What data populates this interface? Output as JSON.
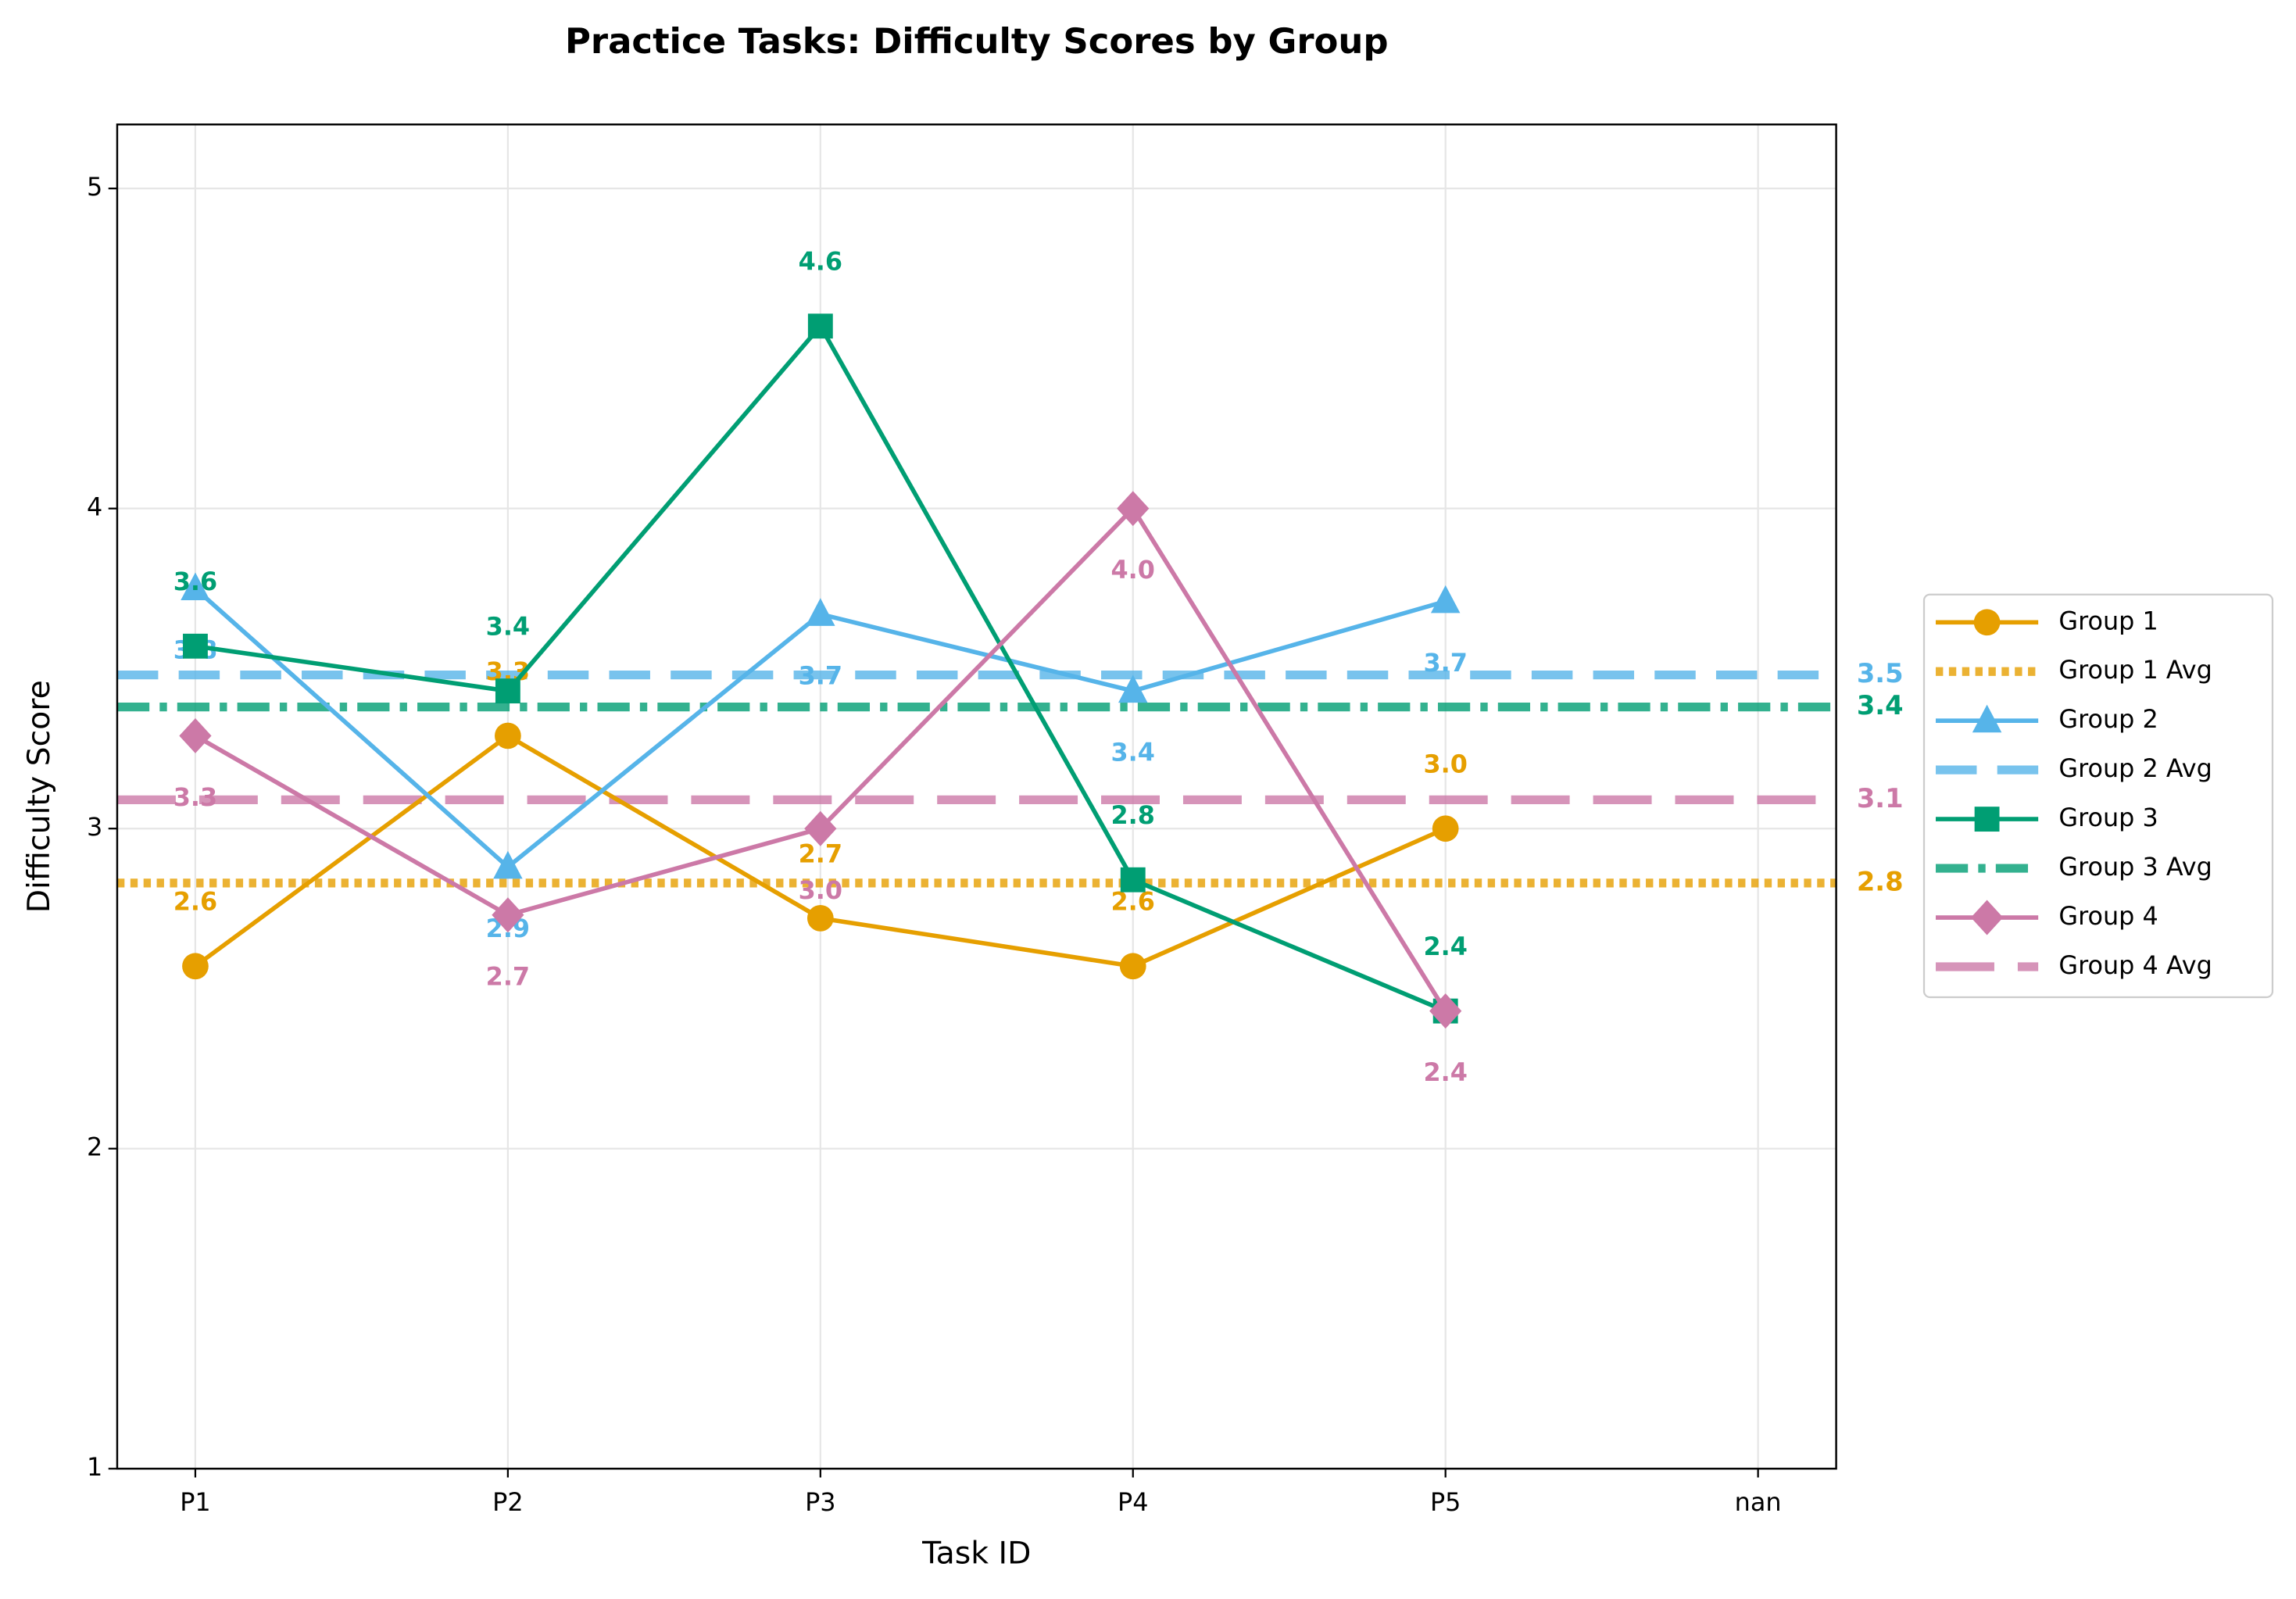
{
  "chart_data": {
    "type": "line",
    "title": "Practice Tasks: Difficulty Scores by Group",
    "x_label": "Task ID",
    "y_label": "Difficulty Score",
    "categories": [
      "P1",
      "P2",
      "P3",
      "P4",
      "P5",
      "nan"
    ],
    "ylim": [
      1,
      5.2
    ],
    "yticks": [
      1,
      2,
      3,
      4,
      5
    ],
    "grid": true,
    "legend": "right",
    "series": [
      {
        "name": "Group 1",
        "color": "#E69F00",
        "marker": "circle",
        "values": [
          2.57,
          3.29,
          2.72,
          2.57,
          3.0,
          null
        ],
        "value_labels": [
          "2.6",
          "3.3",
          "2.7",
          "2.6",
          "3.0",
          null
        ]
      },
      {
        "name": "Group 2",
        "color": "#56B4E9",
        "marker": "triangle",
        "values": [
          3.75,
          2.88,
          3.67,
          3.43,
          3.71,
          null
        ],
        "value_labels": [
          "3.8",
          "2.9",
          "3.7",
          "3.4",
          "3.7",
          null
        ]
      },
      {
        "name": "Group 3",
        "color": "#009E73",
        "marker": "square",
        "values": [
          3.57,
          3.43,
          4.57,
          2.84,
          2.43,
          null
        ],
        "value_labels": [
          "3.6",
          "3.4",
          "4.6",
          "2.8",
          "2.4",
          null
        ]
      },
      {
        "name": "Group 4",
        "color": "#CC79A7",
        "marker": "diamond",
        "values": [
          3.29,
          2.73,
          3.0,
          4.0,
          2.43,
          null
        ],
        "value_labels": [
          "3.3",
          "2.7",
          "3.0",
          "4.0",
          "2.4",
          null
        ]
      }
    ],
    "averages": [
      {
        "name": "Group 1 Avg",
        "color": "#E69F00",
        "style": "dotted",
        "value": 2.83,
        "value_label": "2.8"
      },
      {
        "name": "Group 2 Avg",
        "color": "#56B4E9",
        "style": "dashed",
        "value": 3.48,
        "value_label": "3.5"
      },
      {
        "name": "Group 3 Avg",
        "color": "#009E73",
        "style": "dashdot",
        "value": 3.38,
        "value_label": "3.4"
      },
      {
        "name": "Group 4 Avg",
        "color": "#CC79A7",
        "style": "longdash",
        "value": 3.09,
        "value_label": "3.1"
      }
    ]
  }
}
